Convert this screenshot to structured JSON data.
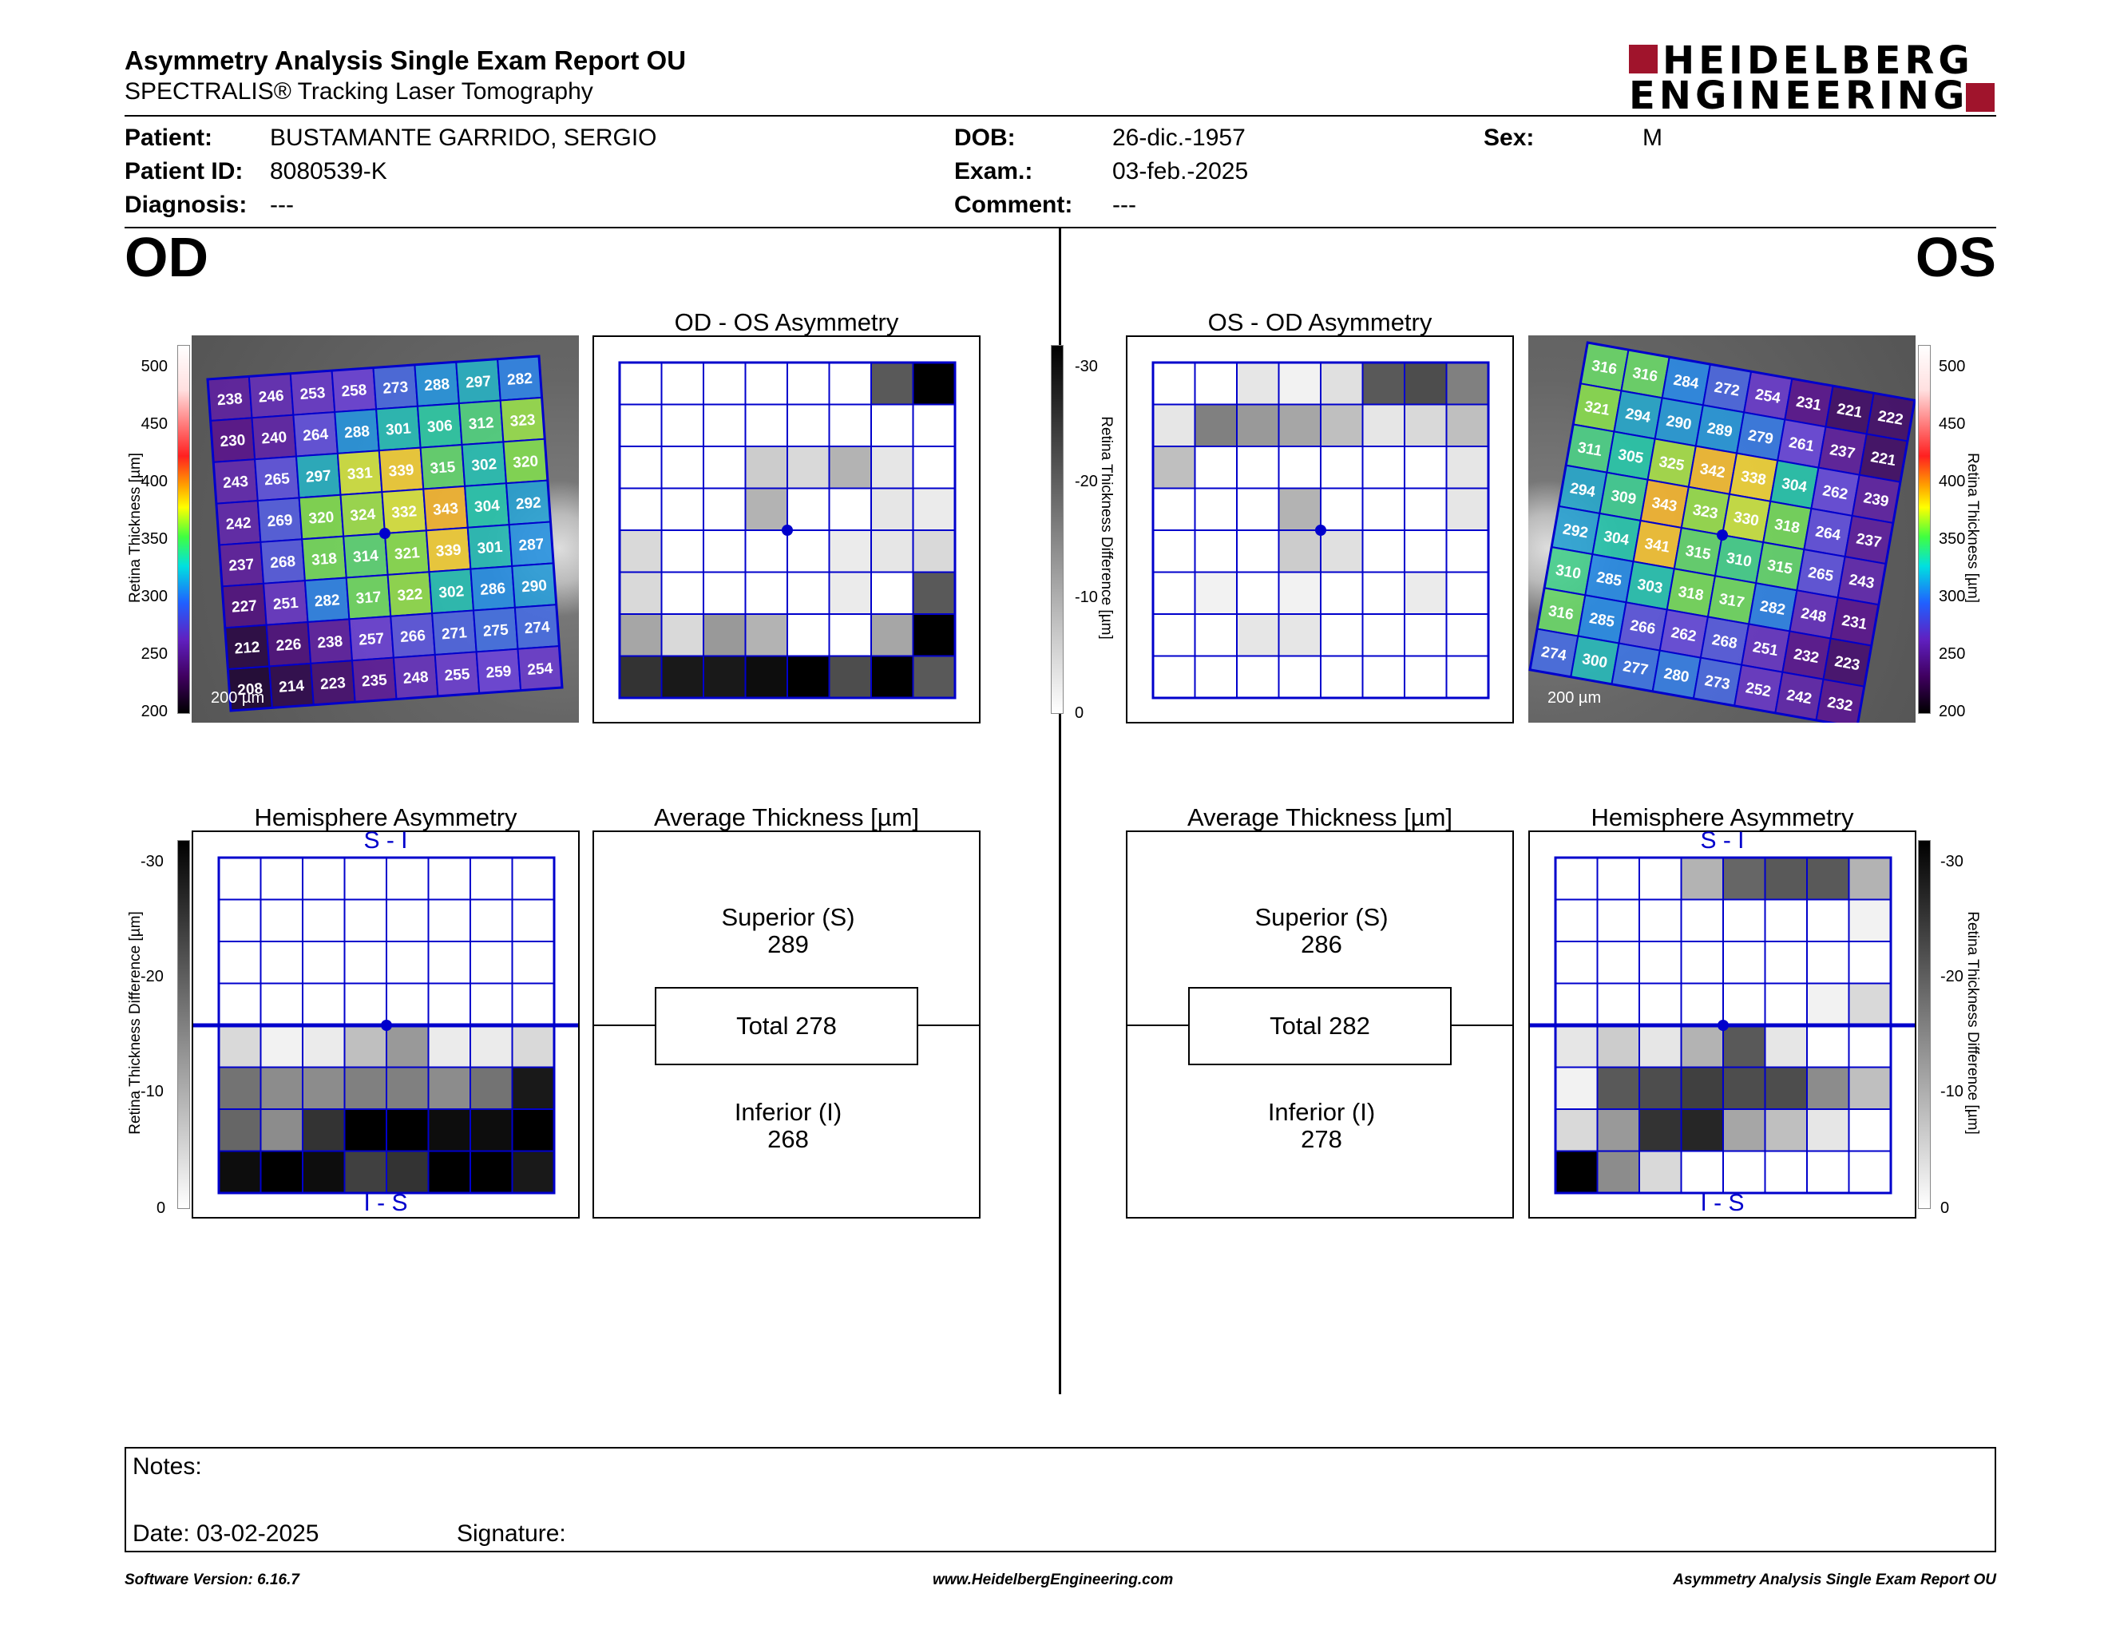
{
  "header": {
    "title": "Asymmetry Analysis Single Exam Report OU",
    "subtitle": "SPECTRALIS® Tracking Laser Tomography",
    "logo_line1": "HEIDELBERG",
    "logo_line2": "ENGINEERING"
  },
  "patient": {
    "patient_label": "Patient:",
    "patient_value": "BUSTAMANTE GARRIDO, SERGIO",
    "id_label": "Patient ID:",
    "id_value": "8080539-K",
    "diagnosis_label": "Diagnosis:",
    "diagnosis_value": "---",
    "dob_label": "DOB:",
    "dob_value": "26-dic.-1957",
    "exam_label": "Exam.:",
    "exam_value": "03-feb.-2025",
    "comment_label": "Comment:",
    "comment_value": "---",
    "sex_label": "Sex:",
    "sex_value": "M"
  },
  "od": {
    "eye_label": "OD",
    "asym_title": "OD - OS Asymmetry",
    "hemi_title": "Hemisphere Asymmetry",
    "avg_title": "Average Thickness [µm]",
    "hemi_top": "S - I",
    "hemi_bottom": "I - S",
    "scale_label": "200 µm",
    "thickness_axis": "Retina Thickness [µm]",
    "diff_axis": "Retina Thickness Difference [µm]",
    "superior_label": "Superior (S)",
    "superior_value": "289",
    "total_label": "Total 278",
    "inferior_label": "Inferior (I)",
    "inferior_value": "268",
    "thickness_grid": [
      [
        238,
        246,
        253,
        258,
        273,
        288,
        297,
        282
      ],
      [
        230,
        240,
        264,
        288,
        301,
        306,
        312,
        323
      ],
      [
        243,
        265,
        297,
        331,
        339,
        315,
        302,
        320
      ],
      [
        242,
        269,
        320,
        324,
        332,
        343,
        304,
        292
      ],
      [
        237,
        268,
        318,
        314,
        321,
        339,
        301,
        287
      ],
      [
        227,
        251,
        282,
        317,
        322,
        302,
        286,
        290
      ],
      [
        212,
        226,
        238,
        257,
        266,
        271,
        275,
        274
      ],
      [
        208,
        214,
        223,
        235,
        248,
        255,
        259,
        254
      ]
    ],
    "asym_shading": [
      [
        0,
        0,
        0,
        0,
        0,
        0,
        0.65,
        1
      ],
      [
        0,
        0,
        0,
        0,
        0,
        0,
        0,
        0
      ],
      [
        0,
        0,
        0,
        0.2,
        0.15,
        0.3,
        0.1,
        0
      ],
      [
        0,
        0,
        0,
        0.3,
        0,
        0,
        0.1,
        0.08
      ],
      [
        0.15,
        0,
        0,
        0,
        0,
        0.08,
        0.1,
        0.15
      ],
      [
        0.15,
        0,
        0,
        0,
        0,
        0.08,
        0,
        0.65
      ],
      [
        0.35,
        0.15,
        0.4,
        0.3,
        0,
        0,
        0.35,
        1
      ],
      [
        0.8,
        0.9,
        0.9,
        0.95,
        1,
        0.7,
        1,
        0.65
      ]
    ],
    "hemi_shading": [
      [
        0,
        0,
        0,
        0,
        0,
        0,
        0,
        0
      ],
      [
        0,
        0,
        0,
        0,
        0,
        0,
        0,
        0
      ],
      [
        0,
        0,
        0,
        0,
        0,
        0,
        0,
        0
      ],
      [
        0,
        0,
        0,
        0,
        0,
        0,
        0,
        0
      ],
      [
        0.15,
        0.05,
        0.08,
        0.25,
        0.4,
        0.08,
        0.08,
        0.15
      ],
      [
        0.55,
        0.45,
        0.45,
        0.5,
        0.5,
        0.45,
        0.55,
        0.9
      ],
      [
        0.6,
        0.45,
        0.8,
        1,
        1,
        0.95,
        0.95,
        1
      ],
      [
        0.95,
        1,
        0.95,
        0.75,
        0.8,
        1,
        1,
        0.9
      ]
    ]
  },
  "os": {
    "eye_label": "OS",
    "asym_title": "OS - OD Asymmetry",
    "hemi_title": "Hemisphere Asymmetry",
    "avg_title": "Average Thickness [µm]",
    "hemi_top": "S - I",
    "hemi_bottom": "I - S",
    "scale_label": "200 µm",
    "thickness_axis": "Retina Thickness [µm]",
    "diff_axis": "Retina Thickness Difference [µm]",
    "superior_label": "Superior (S)",
    "superior_value": "286",
    "total_label": "Total 282",
    "inferior_label": "Inferior (I)",
    "inferior_value": "278",
    "thickness_grid": [
      [
        316,
        316,
        284,
        272,
        254,
        231,
        221,
        222
      ],
      [
        321,
        294,
        290,
        289,
        279,
        261,
        237,
        221
      ],
      [
        311,
        305,
        325,
        342,
        338,
        304,
        262,
        239
      ],
      [
        294,
        309,
        343,
        323,
        330,
        318,
        264,
        237
      ],
      [
        292,
        304,
        341,
        315,
        310,
        315,
        265,
        243
      ],
      [
        310,
        285,
        303,
        318,
        317,
        282,
        248,
        231
      ],
      [
        316,
        285,
        266,
        262,
        268,
        251,
        232,
        223
      ],
      [
        274,
        300,
        277,
        280,
        273,
        252,
        242,
        232
      ]
    ],
    "asym_shading": [
      [
        0,
        0,
        0.1,
        0.05,
        0.12,
        0.65,
        0.7,
        0.5
      ],
      [
        0.1,
        0.5,
        0.4,
        0.35,
        0.25,
        0.1,
        0.15,
        0.25
      ],
      [
        0.25,
        0,
        0,
        0,
        0,
        0,
        0,
        0.1
      ],
      [
        0,
        0,
        0,
        0.3,
        0,
        0,
        0,
        0.1
      ],
      [
        0,
        0,
        0,
        0.2,
        0.12,
        0,
        0,
        0
      ],
      [
        0,
        0.05,
        0,
        0.05,
        0,
        0,
        0.08,
        0
      ],
      [
        0,
        0,
        0.1,
        0.1,
        0,
        0,
        0,
        0
      ],
      [
        0,
        0,
        0,
        0,
        0,
        0,
        0,
        0
      ]
    ],
    "hemi_shading": [
      [
        0,
        0,
        0,
        0.3,
        0.6,
        0.65,
        0.65,
        0.3
      ],
      [
        0,
        0,
        0,
        0,
        0,
        0,
        0,
        0.05
      ],
      [
        0,
        0,
        0,
        0,
        0,
        0,
        0,
        0
      ],
      [
        0,
        0,
        0,
        0,
        0,
        0,
        0.05,
        0.15
      ],
      [
        0.1,
        0.2,
        0.1,
        0.3,
        0.65,
        0.1,
        0,
        0
      ],
      [
        0.05,
        0.65,
        0.7,
        0.75,
        0.7,
        0.7,
        0.45,
        0.25
      ],
      [
        0.15,
        0.4,
        0.8,
        0.85,
        0.35,
        0.25,
        0.1,
        0
      ],
      [
        1,
        0.45,
        0.15,
        0,
        0,
        0,
        0,
        0
      ]
    ]
  },
  "thickness_ticks": [
    "500",
    "450",
    "400",
    "350",
    "300",
    "250",
    "200"
  ],
  "diff_ticks": [
    "-30",
    "-20",
    "-10",
    "0"
  ],
  "notes": {
    "notes_label": "Notes:",
    "date_label": "Date: 03-02-2025",
    "signature_label": "Signature:"
  },
  "footer": {
    "left": "Software Version: 6.16.7",
    "center": "www.HeidelbergEngineering.com",
    "right": "Asymmetry Analysis Single Exam Report OU"
  },
  "colors": {
    "grid_blue": "#0000cc",
    "logo_red": "#a0142c"
  }
}
